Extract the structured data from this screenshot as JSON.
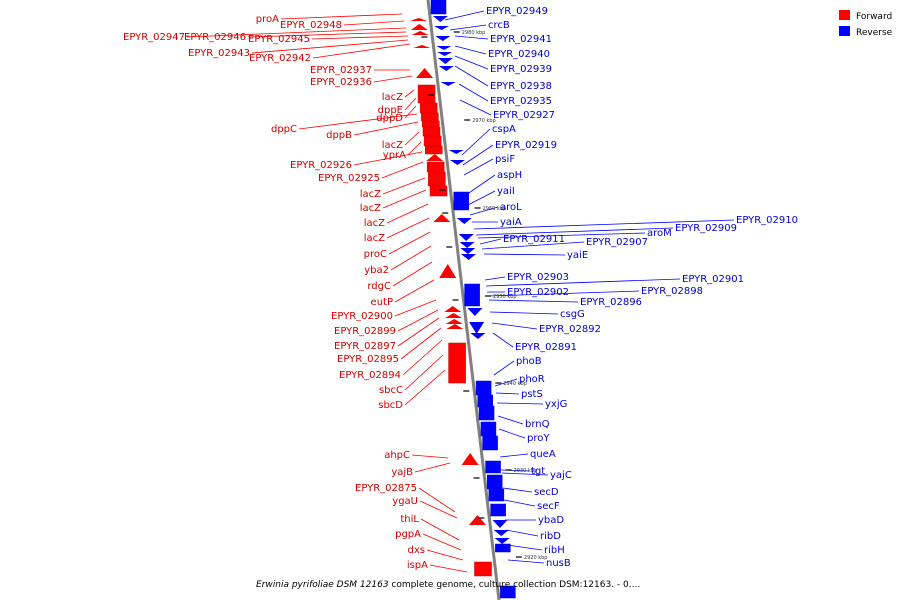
{
  "legend": [
    {
      "label": "Forward",
      "color": "#ff0000"
    },
    {
      "label": "Reverse",
      "color": "#0000ff"
    }
  ],
  "caption": {
    "organism": "Erwinia pyrifoliae DSM 12163",
    "rest": " complete genome, culture collection DSM:12163. - 0...."
  },
  "ticks": [
    "2980 kbp",
    "2970 kbp",
    "2960 kbp",
    "2950 kbp",
    "2940 kbp",
    "2930 kbp",
    "2920 kbp"
  ],
  "forward_genes": [
    "proA",
    "EPYR_02948",
    "EPYR_02947",
    "EPYR_02946",
    "EPYR_02945",
    "EPYR_02943",
    "EPYR_02942",
    "EPYR_02937",
    "EPYR_02936",
    "lacZ",
    "dppE",
    "dppD",
    "dppC",
    "dppB",
    "lacZ",
    "yprA",
    "EPYR_02926",
    "EPYR_02925",
    "lacZ",
    "lacZ",
    "lacZ",
    "lacZ",
    "proC",
    "yba2",
    "rdgC",
    "eutP",
    "EPYR_02900",
    "EPYR_02899",
    "EPYR_02897",
    "EPYR_02895",
    "EPYR_02894",
    "sbcC",
    "sbcD",
    "ahpC",
    "yajB",
    "EPYR_02875",
    "ygaU",
    "thiL",
    "pgpA",
    "dxs",
    "ispA"
  ],
  "reverse_genes": [
    "EPYR_02949",
    "crcB",
    "EPYR_02941",
    "EPYR_02940",
    "EPYR_02939",
    "EPYR_02938",
    "EPYR_02935",
    "EPYR_02927",
    "cspA",
    "EPYR_02919",
    "psiF",
    "aspH",
    "yaiI",
    "aroL",
    "yaiA",
    "EPYR_02910",
    "EPYR_02909",
    "aroM",
    "EPYR_02911",
    "EPYR_02907",
    "yaiE",
    "EPYR_02903",
    "EPYR_02901",
    "EPYR_02902",
    "EPYR_02898",
    "EPYR_02896",
    "csgG",
    "EPYR_02892",
    "EPYR_02891",
    "phoB",
    "phoR",
    "pstS",
    "yxjG",
    "brnQ",
    "proY",
    "queA",
    "tgt",
    "yajC",
    "secD",
    "secF",
    "ybaD",
    "ribD",
    "ribH",
    "nusB"
  ]
}
